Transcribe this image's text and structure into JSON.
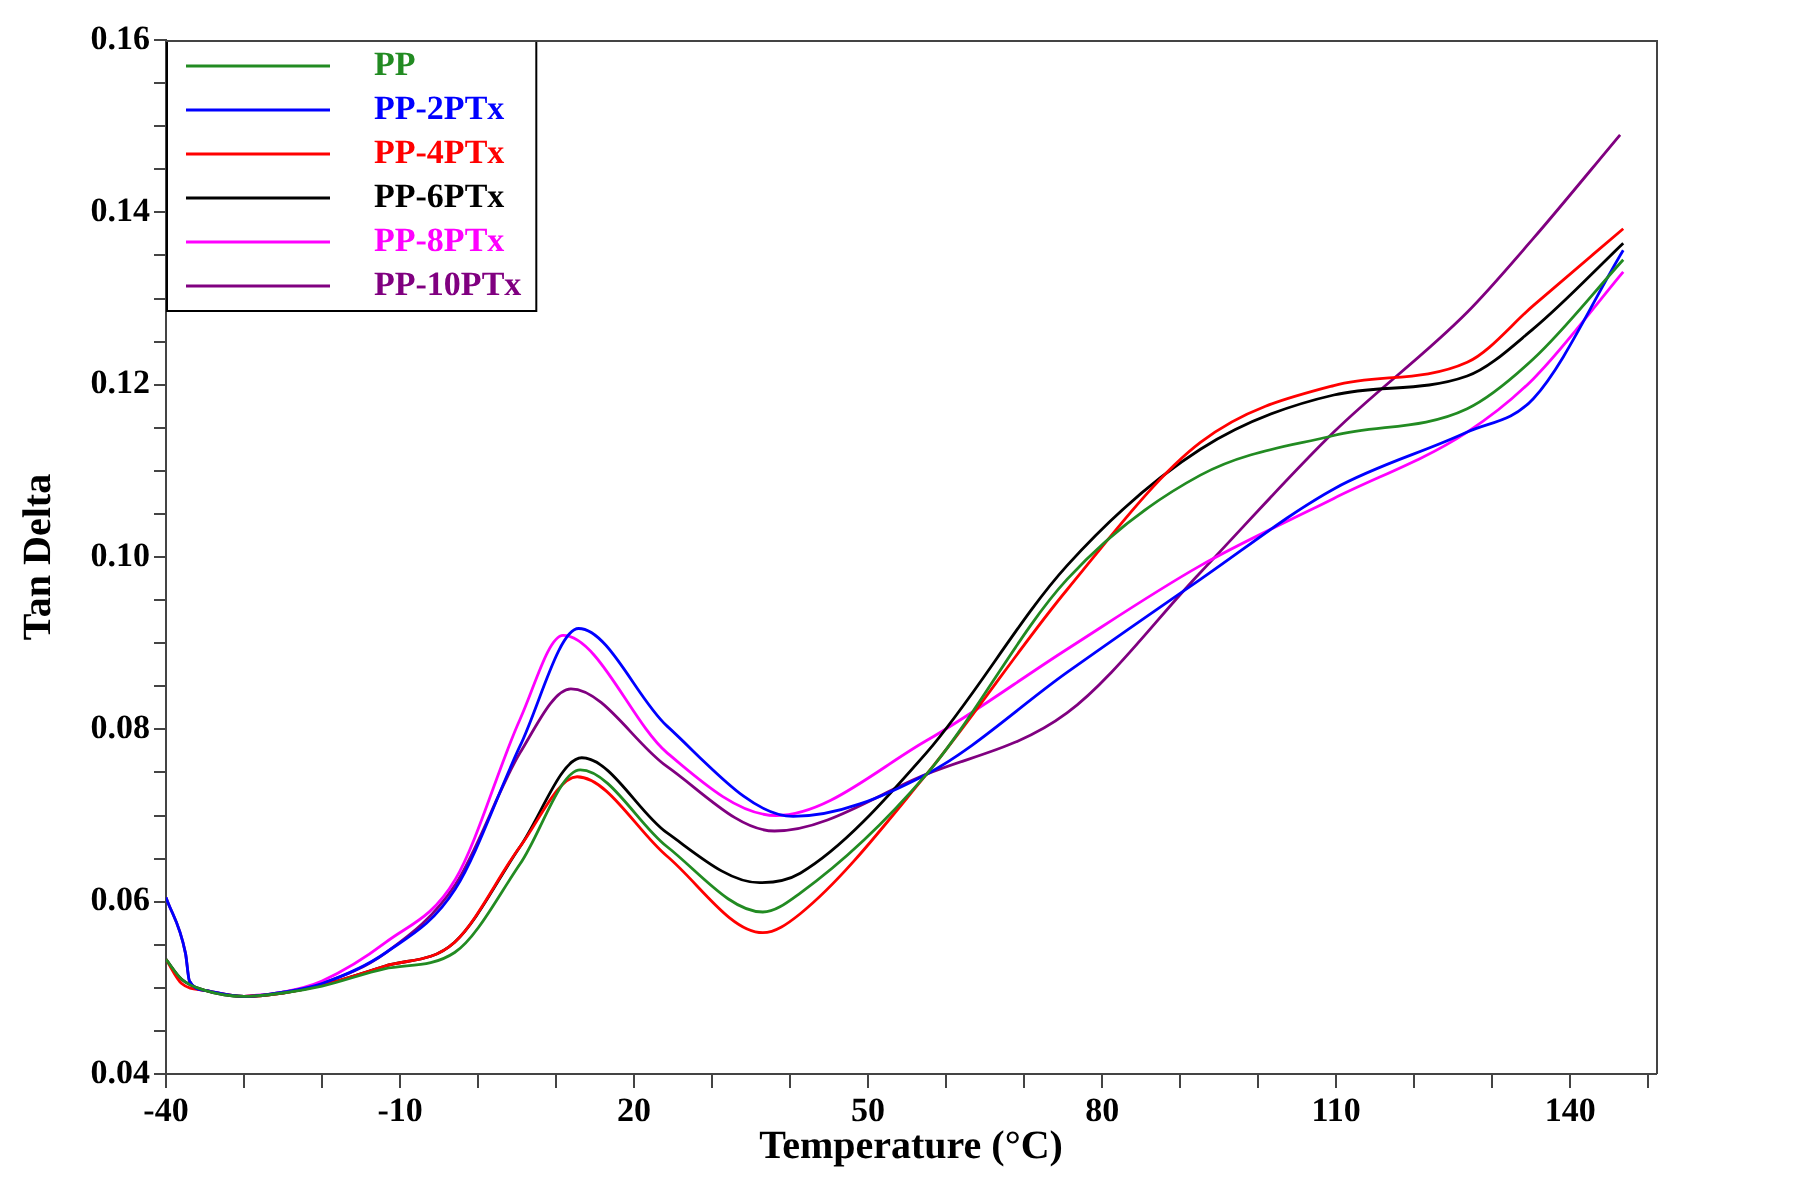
{
  "chart_data": {
    "type": "line",
    "xlabel": "Temperature (°C)",
    "ylabel": "Tan Delta",
    "xlim": [
      -40,
      151
    ],
    "xticks": [
      -40,
      {
        "value": -30,
        "label": null
      },
      {
        "value": -20,
        "label": null
      },
      -10,
      {
        "value": 0,
        "label": null
      },
      {
        "value": 10,
        "label": null
      },
      20,
      {
        "value": 30,
        "label": null
      },
      {
        "value": 40,
        "label": null
      },
      50,
      {
        "value": 60,
        "label": null
      },
      {
        "value": 70,
        "label": null
      },
      80,
      {
        "value": 90,
        "label": null
      },
      {
        "value": 100,
        "label": null
      },
      110,
      {
        "value": 120,
        "label": null
      },
      {
        "value": 130,
        "label": null
      },
      140,
      {
        "value": 150,
        "label": null
      }
    ],
    "ylim": [
      0.04,
      0.16
    ],
    "yticks": [
      {
        "value": 0.04,
        "label": "0.04"
      },
      {
        "value": 0.045,
        "label": null
      },
      {
        "value": 0.05,
        "label": null
      },
      {
        "value": 0.055,
        "label": null
      },
      {
        "value": 0.06,
        "label": "0.06"
      },
      {
        "value": 0.065,
        "label": null
      },
      {
        "value": 0.07,
        "label": null
      },
      {
        "value": 0.075,
        "label": null
      },
      {
        "value": 0.08,
        "label": "0.08"
      },
      {
        "value": 0.085,
        "label": null
      },
      {
        "value": 0.09,
        "label": null
      },
      {
        "value": 0.095,
        "label": null
      },
      {
        "value": 0.1,
        "label": "0.10"
      },
      {
        "value": 0.105,
        "label": null
      },
      {
        "value": 0.11,
        "label": null
      },
      {
        "value": 0.115,
        "label": null
      },
      {
        "value": 0.12,
        "label": "0.12"
      },
      {
        "value": 0.125,
        "label": null
      },
      {
        "value": 0.13,
        "label": null
      },
      {
        "value": 0.135,
        "label": null
      },
      {
        "value": 0.14,
        "label": "0.14"
      },
      {
        "value": 0.145,
        "label": null
      },
      {
        "value": 0.15,
        "label": null
      },
      {
        "value": 0.155,
        "label": null
      },
      {
        "value": 0.16,
        "label": "0.16"
      }
    ],
    "grid": false,
    "legend": "top left",
    "marker": "none",
    "line_style": "solid",
    "series": [
      {
        "name": "PP",
        "color": "#228b22",
        "x": [
          -40,
          -38,
          -35,
          -30,
          -25,
          -20,
          -12,
          -3,
          5.4,
          13.1,
          24.2,
          36.5,
          41.3,
          57.5,
          75.5,
          92.6,
          109.7,
          126.8,
          135.3,
          146.8
        ],
        "values": [
          0.0533,
          0.051,
          0.0497,
          0.049,
          0.0494,
          0.0502,
          0.0522,
          0.0541,
          0.0644,
          0.0753,
          0.0664,
          0.0588,
          0.061,
          0.0748,
          0.0974,
          0.1095,
          0.1141,
          0.1172,
          0.123,
          0.1345
        ]
      },
      {
        "name": "PP-2PTx",
        "color": "#0000ff",
        "x": [
          -40,
          -37.5,
          -37,
          -35,
          -30,
          -25,
          -20,
          -11.8,
          -2.9,
          5.4,
          12.9,
          24.2,
          40.4,
          57.5,
          75.5,
          92.6,
          109.7,
          126.8,
          135.3,
          146.8
        ],
        "values": [
          0.0605,
          0.054,
          0.0508,
          0.0497,
          0.049,
          0.0495,
          0.0505,
          0.0541,
          0.0615,
          0.0781,
          0.0917,
          0.0804,
          0.0699,
          0.0748,
          0.0866,
          0.0974,
          0.1079,
          0.1145,
          0.1184,
          0.1356
        ]
      },
      {
        "name": "PP-4PTx",
        "color": "#ff0000",
        "x": [
          -40,
          -38,
          -35,
          -30,
          -25,
          -20,
          -12,
          -3,
          5.4,
          12.7,
          24.2,
          36.5,
          41.3,
          57.5,
          75.5,
          92.6,
          109.7,
          126.8,
          135.3,
          146.8
        ],
        "values": [
          0.0533,
          0.0505,
          0.0497,
          0.049,
          0.0494,
          0.0503,
          0.0525,
          0.0553,
          0.0664,
          0.0745,
          0.0653,
          0.0564,
          0.0586,
          0.0748,
          0.0962,
          0.1133,
          0.1199,
          0.1226,
          0.1292,
          0.1381
        ]
      },
      {
        "name": "PP-6PTx",
        "color": "#000000",
        "x": [
          -40,
          -38,
          -35,
          -30,
          -25,
          -20,
          -12,
          -3,
          5.4,
          13.3,
          24.2,
          36.1,
          41.3,
          57.5,
          75.5,
          92.6,
          109.7,
          126.8,
          135.3,
          146.8
        ],
        "values": [
          0.0533,
          0.051,
          0.0497,
          0.049,
          0.0494,
          0.0503,
          0.0525,
          0.0553,
          0.0664,
          0.0767,
          0.068,
          0.0622,
          0.0633,
          0.0773,
          0.099,
          0.1125,
          0.1188,
          0.121,
          0.1265,
          0.1364
        ]
      },
      {
        "name": "PP-8PTx",
        "color": "#ff00ff",
        "x": [
          -30,
          -25,
          -20,
          -11.8,
          -2.9,
          5.4,
          10.9,
          24.2,
          38.2,
          57.5,
          75.5,
          92.6,
          109.7,
          126.8,
          135.3,
          146.8
        ],
        "values": [
          0.049,
          0.0495,
          0.0508,
          0.0553,
          0.0626,
          0.0812,
          0.0909,
          0.0773,
          0.07,
          0.0787,
          0.0893,
          0.099,
          0.1068,
          0.1145,
          0.1207,
          0.1331
        ]
      },
      {
        "name": "PP-10PTx",
        "color": "#800080",
        "x": [
          -40,
          -37.5,
          -37,
          -35,
          -30,
          -25,
          -20,
          -11.8,
          -2.9,
          5.4,
          11.9,
          24.2,
          38,
          57.5,
          75.5,
          92.6,
          109.7,
          126.8,
          135.3,
          146.4
        ],
        "values": [
          0.0605,
          0.054,
          0.0508,
          0.0497,
          0.049,
          0.0495,
          0.0505,
          0.0541,
          0.062,
          0.0773,
          0.0847,
          0.0757,
          0.0682,
          0.0748,
          0.0819,
          0.0982,
          0.1145,
          0.1284,
          0.137,
          0.149
        ]
      }
    ]
  }
}
